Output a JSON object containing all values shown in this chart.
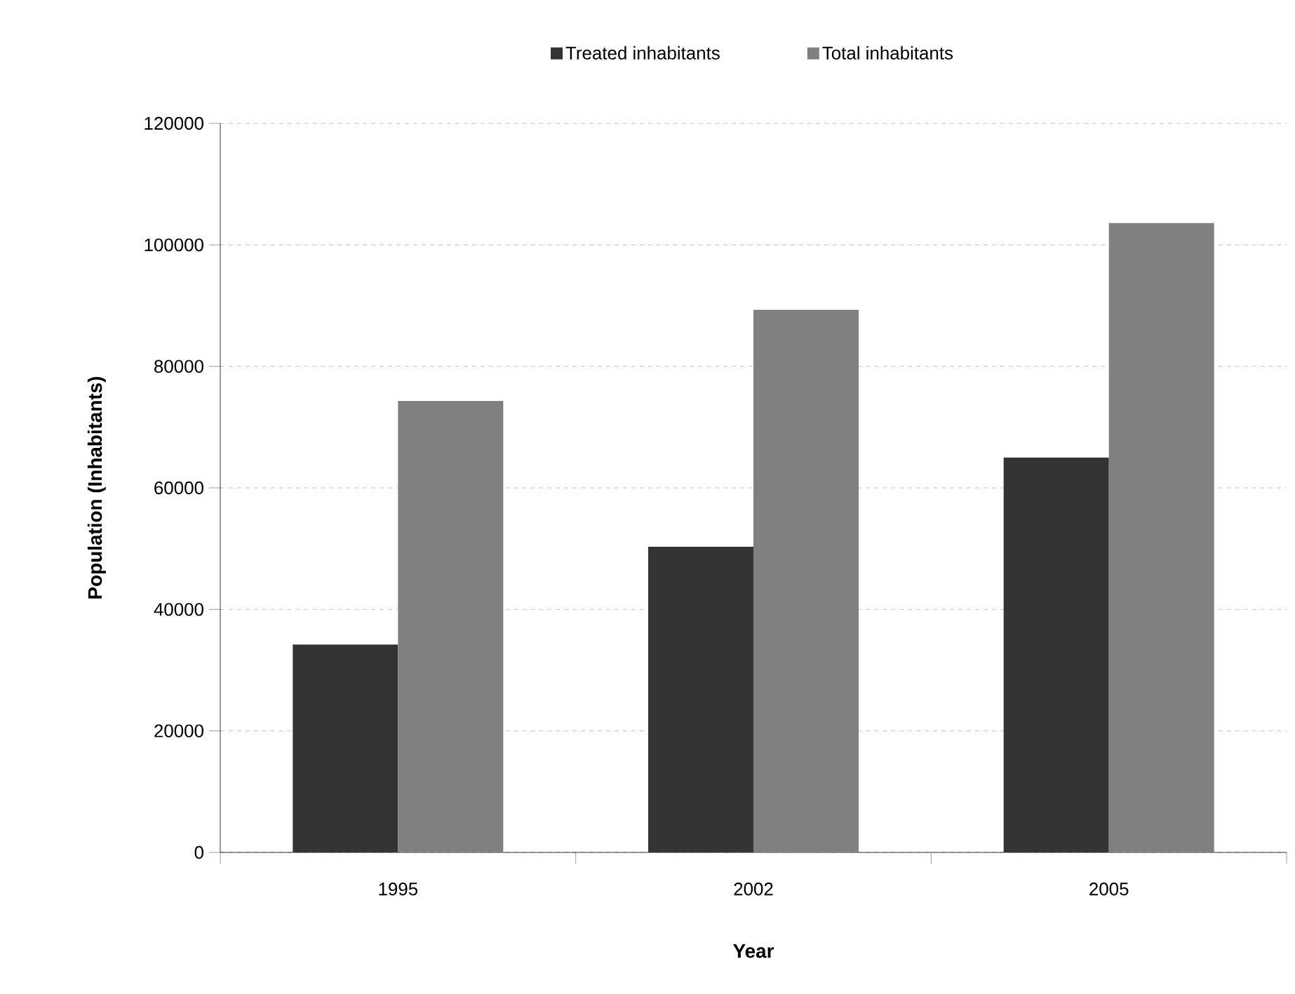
{
  "chart_data": {
    "type": "bar",
    "xlabel": "Year",
    "ylabel": "Population (Inhabitants)",
    "categories": [
      "1995",
      "2002",
      "2005"
    ],
    "series": [
      {
        "name": "Treated inhabitants",
        "color": "#333333",
        "values": [
          34200,
          50300,
          65000
        ]
      },
      {
        "name": "Total inhabitants",
        "color": "#808080",
        "values": [
          74300,
          89300,
          103600
        ]
      }
    ],
    "ylim": [
      0,
      120000
    ],
    "yticks": [
      0,
      20000,
      40000,
      60000,
      80000,
      100000,
      120000
    ],
    "grid": "y",
    "legend": "top"
  }
}
